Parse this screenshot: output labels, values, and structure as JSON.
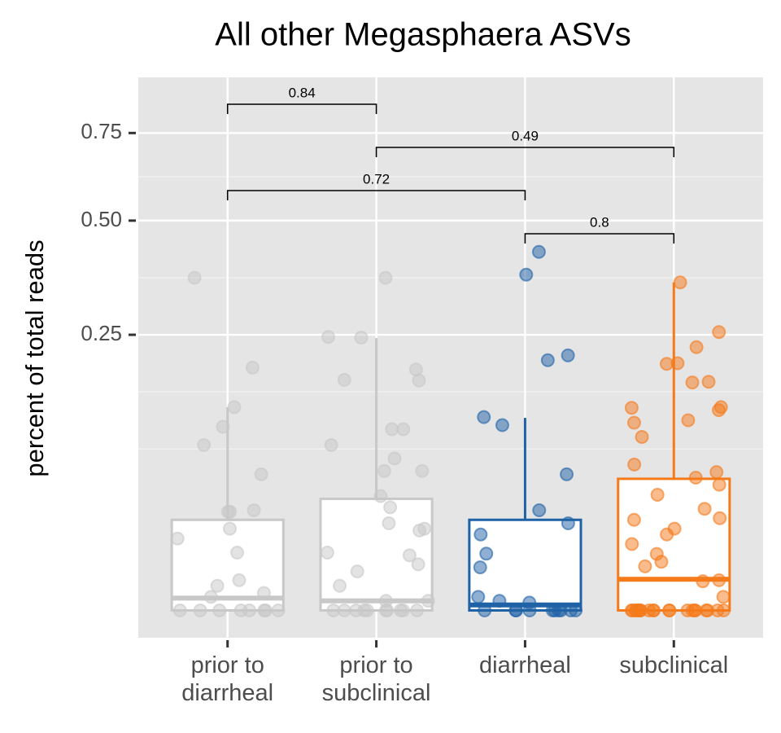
{
  "chart_data": {
    "type": "box",
    "title": "All other Megasphaera ASVs",
    "y_label": "percent of total reads",
    "y_scale": "sqrt",
    "ylim": [
      0,
      0.935
    ],
    "yticks": [
      0.25,
      {
        "value": 0.5,
        "label": "0.50"
      },
      0.75
    ],
    "grid": true,
    "categories": [
      "prior to\ndiarrheal",
      "prior to\nsubclinical",
      "diarrheal",
      "subclinical"
    ],
    "series": [
      {
        "color": "#c8c8c8",
        "box": {
          "whisker_low": 0,
          "q1": 0,
          "median": 0.0005,
          "q3": 0.027,
          "whisker_high": 0.136
        },
        "points": [
          0.364,
          0.194,
          0.136,
          0.111,
          0.09,
          0.061,
          0.033,
          0.032,
          0.032,
          0.022,
          0.017,
          0.011,
          0.003,
          0.002,
          0.001,
          0.0006,
          0,
          0,
          0,
          0,
          0,
          0,
          0,
          0
        ]
      },
      {
        "color": "#c8c8c8",
        "box": {
          "whisker_low": 0,
          "q1": 0,
          "median": 0.0003,
          "q3": 0.041,
          "whisker_high": 0.244
        },
        "points": [
          0.364,
          0.246,
          0.245,
          0.191,
          0.175,
          0.174,
          0.108,
          0.108,
          0.09,
          0.076,
          0.064,
          0.064,
          0.043,
          0.035,
          0.025,
          0.022,
          0.021,
          0.011,
          0.01,
          0.007,
          0.005,
          0.002,
          0.0003,
          0.0003,
          0,
          0,
          0,
          0,
          0,
          0,
          0,
          0,
          0,
          0
        ]
      },
      {
        "color": "#1f62a6",
        "box": {
          "whisker_low": 0,
          "q1": 0,
          "median": 0.0001,
          "q3": 0.027,
          "whisker_high": 0.122
        },
        "points": [
          0.423,
          0.371,
          0.214,
          0.206,
          0.123,
          0.113,
          0.061,
          0.033,
          0.025,
          0.019,
          0.0106,
          0.0061,
          0.0006,
          0.0003,
          0.0002,
          0,
          0,
          0,
          0,
          0,
          0,
          0,
          0,
          0,
          0
        ]
      },
      {
        "color": "#f57a1a",
        "box": {
          "whisker_low": 0,
          "q1": 0,
          "median": 0.0032,
          "q3": 0.057,
          "whisker_high": 0.354
        },
        "points": [
          0.354,
          0.255,
          0.228,
          0.201,
          0.2,
          0.172,
          0.171,
          0.135,
          0.136,
          0.132,
          0.119,
          0.116,
          0.099,
          0.07,
          0.058,
          0.063,
          0.052,
          0.044,
          0.034,
          0.028,
          0.027,
          0.022,
          0.019,
          0.0145,
          0.0105,
          0.0078,
          0.0064,
          0.003,
          0.0028,
          0.0006,
          0,
          0,
          0,
          0,
          0,
          0,
          0,
          0,
          0,
          0,
          0,
          0,
          0,
          0,
          0,
          0,
          0,
          0,
          0,
          0
        ]
      }
    ],
    "annotations": [
      {
        "from": 0,
        "to": 1,
        "label": "0.84"
      },
      {
        "from": 1,
        "to": 3,
        "label": "0.49"
      },
      {
        "from": 0,
        "to": 2,
        "label": "0.72"
      },
      {
        "from": 2,
        "to": 3,
        "label": "0.8"
      }
    ]
  }
}
